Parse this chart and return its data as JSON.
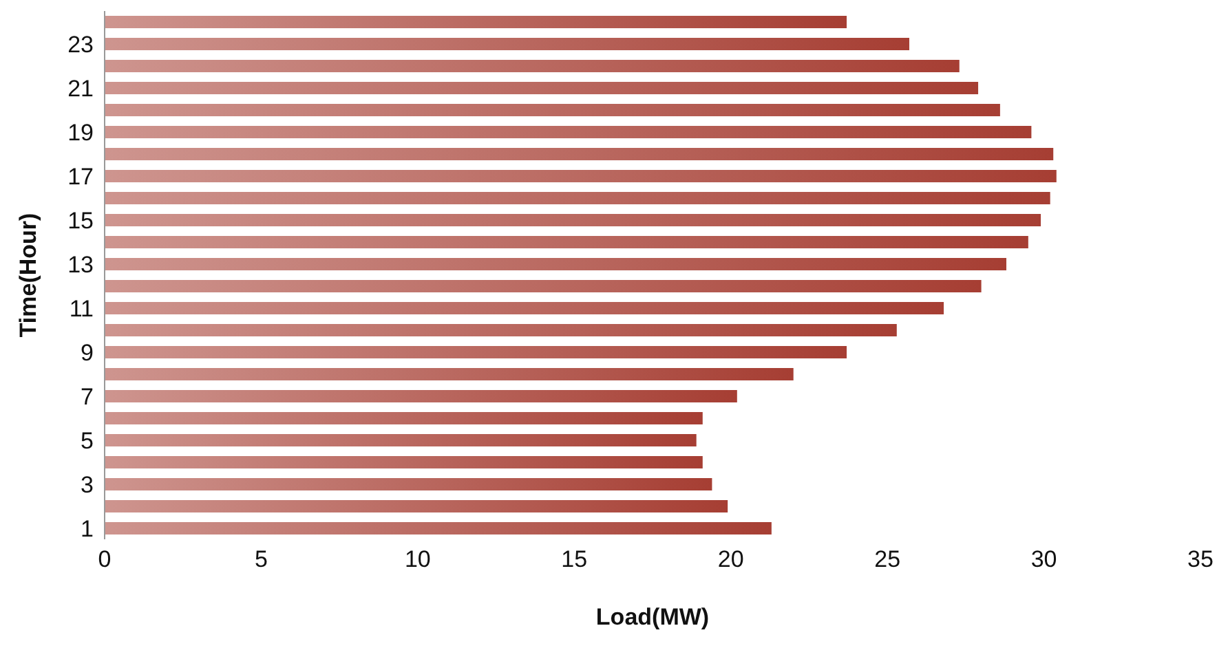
{
  "chart_data": {
    "type": "bar",
    "orientation": "horizontal",
    "xlabel": "Load(MW)",
    "ylabel": "Time(Hour)",
    "categories": [
      null,
      "23",
      null,
      "21",
      null,
      "19",
      null,
      "17",
      null,
      "15",
      null,
      "13",
      null,
      "11",
      null,
      "9",
      null,
      "7",
      null,
      "5",
      null,
      "3",
      null,
      "1"
    ],
    "values": [
      23.7,
      25.7,
      27.3,
      27.9,
      28.6,
      29.6,
      30.3,
      30.4,
      30.2,
      29.9,
      29.5,
      28.8,
      28.0,
      26.8,
      25.3,
      23.7,
      22.0,
      20.2,
      19.1,
      18.9,
      19.1,
      19.4,
      19.9,
      21.3
    ],
    "color": "#a63e33",
    "xlim": [
      0,
      35
    ],
    "xticks": [
      0,
      5,
      10,
      15,
      20,
      25,
      30,
      35
    ],
    "grid": false,
    "legend": false
  }
}
